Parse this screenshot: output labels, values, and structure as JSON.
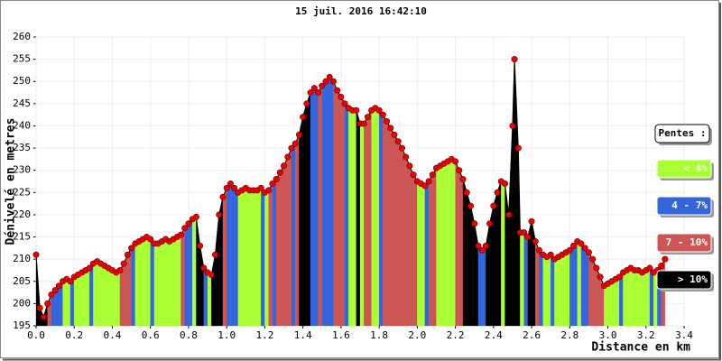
{
  "chart_data": {
    "type": "area",
    "title": "15 juil. 2016 16:42:10",
    "y_label": "Dénivelé en metres",
    "x_label": "Distance en km",
    "legend_title": "Pentes :",
    "legend": [
      {
        "label": "< 4%",
        "color": "#af3"
      },
      {
        "label": "4 - 7%",
        "color": "#36d"
      },
      {
        "label": "7 - 10%",
        "color": "#c55"
      },
      {
        "label": "> 10%",
        "color": "#000"
      }
    ],
    "line_color": "#000",
    "point_color": "#e00",
    "x": [
      0,
      0.02,
      0.04,
      0.06,
      0.08,
      0.1,
      0.12,
      0.14,
      0.16,
      0.18,
      0.2,
      0.22,
      0.24,
      0.26,
      0.28,
      0.3,
      0.32,
      0.34,
      0.36,
      0.38,
      0.4,
      0.42,
      0.44,
      0.46,
      0.48,
      0.5,
      0.52,
      0.54,
      0.56,
      0.58,
      0.6,
      0.62,
      0.64,
      0.66,
      0.68,
      0.7,
      0.72,
      0.74,
      0.76,
      0.78,
      0.8,
      0.82,
      0.84,
      0.86,
      0.88,
      0.9,
      0.92,
      0.94,
      0.96,
      0.98,
      1.0,
      1.02,
      1.04,
      1.06,
      1.08,
      1.1,
      1.12,
      1.14,
      1.16,
      1.18,
      1.2,
      1.22,
      1.24,
      1.26,
      1.28,
      1.3,
      1.32,
      1.34,
      1.36,
      1.38,
      1.4,
      1.42,
      1.44,
      1.46,
      1.48,
      1.5,
      1.52,
      1.54,
      1.56,
      1.58,
      1.6,
      1.62,
      1.64,
      1.66,
      1.68,
      1.7,
      1.72,
      1.74,
      1.76,
      1.78,
      1.8,
      1.82,
      1.84,
      1.86,
      1.88,
      1.9,
      1.92,
      1.94,
      1.96,
      1.98,
      2.0,
      2.02,
      2.04,
      2.06,
      2.08,
      2.1,
      2.12,
      2.14,
      2.16,
      2.18,
      2.2,
      2.22,
      2.24,
      2.26,
      2.28,
      2.3,
      2.32,
      2.34,
      2.36,
      2.38,
      2.4,
      2.42,
      2.44,
      2.46,
      2.48,
      2.5,
      2.51,
      2.53,
      2.54,
      2.56,
      2.58,
      2.6,
      2.62,
      2.64,
      2.66,
      2.68,
      2.7,
      2.72,
      2.74,
      2.76,
      2.78,
      2.8,
      2.82,
      2.84,
      2.86,
      2.88,
      2.9,
      2.92,
      2.94,
      2.96,
      2.98,
      3.0,
      3.02,
      3.04,
      3.06,
      3.08,
      3.1,
      3.12,
      3.14,
      3.16,
      3.18,
      3.2,
      3.22,
      3.24,
      3.26,
      3.28,
      3.3
    ],
    "values": [
      211,
      199,
      197,
      200,
      202,
      203,
      204,
      205,
      205.5,
      205,
      206,
      206.5,
      207,
      207.5,
      208,
      209,
      209.5,
      209,
      208.5,
      208,
      207.5,
      207,
      207.5,
      209,
      211,
      212.5,
      213.5,
      214,
      214.5,
      215,
      214.5,
      213.5,
      213.5,
      214,
      214.5,
      214,
      214.5,
      215,
      215.5,
      217,
      218,
      219,
      219.5,
      213,
      208,
      207,
      206.5,
      211,
      220,
      224,
      226,
      227,
      226,
      225,
      225.5,
      226,
      225.5,
      225.5,
      225.5,
      226,
      225,
      225.5,
      227,
      228,
      229.5,
      231,
      233,
      235,
      236,
      238,
      242,
      245,
      247.5,
      248.5,
      247.5,
      249,
      250,
      251,
      250,
      248,
      246.5,
      245,
      244,
      243.5,
      243.5,
      240.5,
      240.5,
      242,
      243.5,
      244,
      243.5,
      242.5,
      241,
      239.5,
      238,
      236.5,
      235,
      233,
      231,
      229,
      227.5,
      227,
      226.5,
      227.5,
      229,
      230.5,
      231,
      231.5,
      232,
      232.5,
      232,
      230,
      228,
      225,
      222,
      218,
      213,
      212,
      213,
      218,
      222,
      225,
      227.5,
      227,
      220,
      240,
      255,
      235,
      216,
      216,
      215,
      218.5,
      214,
      212,
      211,
      210.5,
      211,
      210,
      210.5,
      211,
      211.5,
      212,
      213,
      214,
      213.5,
      212.5,
      211.5,
      210,
      208,
      206,
      204,
      204.5,
      205,
      205.5,
      206,
      207,
      207.5,
      208,
      207.5,
      207.5,
      207,
      207.5,
      208,
      207,
      207.5,
      208.5,
      210
    ],
    "segment_colors": [
      "#000",
      "#000",
      "#000",
      "#c55",
      "#36d",
      "#36d",
      "#36d",
      "#af3",
      "#af3",
      "#36d",
      "#af3",
      "#af3",
      "#af3",
      "#af3",
      "#36d",
      "#af3",
      "#af3",
      "#af3",
      "#af3",
      "#af3",
      "#af3",
      "#af3",
      "#c55",
      "#c55",
      "#c55",
      "#36d",
      "#af3",
      "#af3",
      "#af3",
      "#af3",
      "#36d",
      "#af3",
      "#af3",
      "#af3",
      "#af3",
      "#af3",
      "#af3",
      "#af3",
      "#c55",
      "#36d",
      "#36d",
      "#af3",
      "#000",
      "#000",
      "#36d",
      "#af3",
      "#000",
      "#000",
      "#000",
      "#c55",
      "#36d",
      "#36d",
      "#36d",
      "#af3",
      "#af3",
      "#af3",
      "#af3",
      "#af3",
      "#af3",
      "#36d",
      "#af3",
      "#c55",
      "#36d",
      "#c55",
      "#c55",
      "#c55",
      "#c55",
      "#36d",
      "#c55",
      "#000",
      "#000",
      "#000",
      "#36d",
      "#36d",
      "#c55",
      "#36d",
      "#36d",
      "#36d",
      "#c55",
      "#c55",
      "#c55",
      "#36d",
      "#af3",
      "#af3",
      "#000",
      "#af3",
      "#c55",
      "#c55",
      "#af3",
      "#af3",
      "#36d",
      "#c55",
      "#c55",
      "#c55",
      "#c55",
      "#c55",
      "#c55",
      "#c55",
      "#c55",
      "#c55",
      "#af3",
      "#af3",
      "#36d",
      "#c55",
      "#c55",
      "#af3",
      "#af3",
      "#af3",
      "#af3",
      "#af3",
      "#c55",
      "#c55",
      "#000",
      "#000",
      "#000",
      "#000",
      "#36d",
      "#36d",
      "#000",
      "#000",
      "#000",
      "#000",
      "#af3",
      "#000",
      "#000",
      "#000",
      "#000",
      "#000",
      "#af3",
      "#36d",
      "#000",
      "#000",
      "#c55",
      "#36d",
      "#af3",
      "#af3",
      "#36d",
      "#af3",
      "#af3",
      "#af3",
      "#af3",
      "#36d",
      "#36d",
      "#af3",
      "#36d",
      "#36d",
      "#c55",
      "#c55",
      "#c55",
      "#c55",
      "#af3",
      "#af3",
      "#af3",
      "#af3",
      "#36d",
      "#af3",
      "#af3",
      "#af3",
      "#af3",
      "#af3",
      "#af3",
      "#af3",
      "#36d",
      "#af3",
      "#36d",
      "#c55"
    ],
    "xlim": [
      0,
      3.4
    ],
    "xticks": [
      {
        "value": 0,
        "label": "0.0"
      },
      {
        "value": 0.2,
        "label": "0.2"
      },
      {
        "value": 0.4,
        "label": "0.4"
      },
      {
        "value": 0.6,
        "label": "0.6"
      },
      {
        "value": 0.8,
        "label": "0.8"
      },
      {
        "value": 1,
        "label": "1.0"
      },
      {
        "value": 1.2,
        "label": "1.2"
      },
      {
        "value": 1.4,
        "label": "1.4"
      },
      {
        "value": 1.6,
        "label": "1.6"
      },
      {
        "value": 1.8,
        "label": "1.8"
      },
      {
        "value": 2,
        "label": "2.0"
      },
      {
        "value": 2.2,
        "label": "2.2"
      },
      {
        "value": 2.4,
        "label": "2.4"
      },
      {
        "value": 2.6,
        "label": "2.6"
      },
      {
        "value": 2.8,
        "label": "2.8"
      },
      {
        "value": 3,
        "label": "3.0"
      },
      {
        "value": 3.2,
        "label": "3.2"
      },
      {
        "value": 3.4,
        "label": "3.4"
      }
    ],
    "ylim": [
      195,
      260
    ],
    "yticks": [
      195,
      200,
      205,
      210,
      215,
      220,
      225,
      230,
      235,
      240,
      245,
      250,
      255,
      260
    ],
    "grid": true
  }
}
